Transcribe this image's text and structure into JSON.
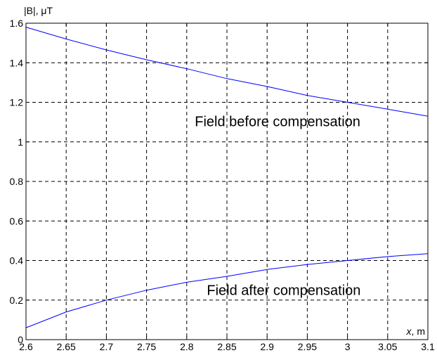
{
  "chart_data": {
    "type": "line",
    "title": "",
    "ylabel": "|B|, μT",
    "xlabel_var": "x",
    "xlabel_unit": ", m",
    "xlim": [
      2.6,
      3.1
    ],
    "ylim": [
      0,
      1.6
    ],
    "xticks": [
      2.6,
      2.65,
      2.7,
      2.75,
      2.8,
      2.85,
      2.9,
      2.95,
      3,
      3.05,
      3.1
    ],
    "xtick_labels": [
      "2.6",
      "2.65",
      "2.7",
      "2.75",
      "2.8",
      "2.85",
      "2.9",
      "2.95",
      "3",
      "3.05",
      "3.1"
    ],
    "yticks": [
      0,
      0.2,
      0.4,
      0.6,
      0.8,
      1.0,
      1.2,
      1.4,
      1.6
    ],
    "ytick_labels": [
      "0",
      "0.2",
      "0.4",
      "0.6",
      "0.8",
      "1",
      "1.2",
      "1.4",
      "1.6"
    ],
    "grid": true,
    "grid_style": "dashed",
    "line_color": "#0000ff",
    "series": [
      {
        "x": [
          2.6,
          2.65,
          2.7,
          2.75,
          2.8,
          2.85,
          2.9,
          2.95,
          3.0,
          3.05,
          3.1
        ],
        "values": [
          1.58,
          1.52,
          1.465,
          1.415,
          1.37,
          1.32,
          1.28,
          1.235,
          1.2,
          1.165,
          1.13
        ]
      },
      {
        "x": [
          2.6,
          2.65,
          2.7,
          2.75,
          2.8,
          2.85,
          2.9,
          2.95,
          3.0,
          3.05,
          3.1
        ],
        "values": [
          0.06,
          0.14,
          0.2,
          0.25,
          0.29,
          0.32,
          0.355,
          0.38,
          0.4,
          0.42,
          0.435
        ]
      }
    ],
    "annotations": [
      {
        "text": "Field before compensation",
        "x": 2.81,
        "y": 1.08
      },
      {
        "text": "Field after compensation",
        "x": 2.825,
        "y": 0.225
      }
    ]
  }
}
